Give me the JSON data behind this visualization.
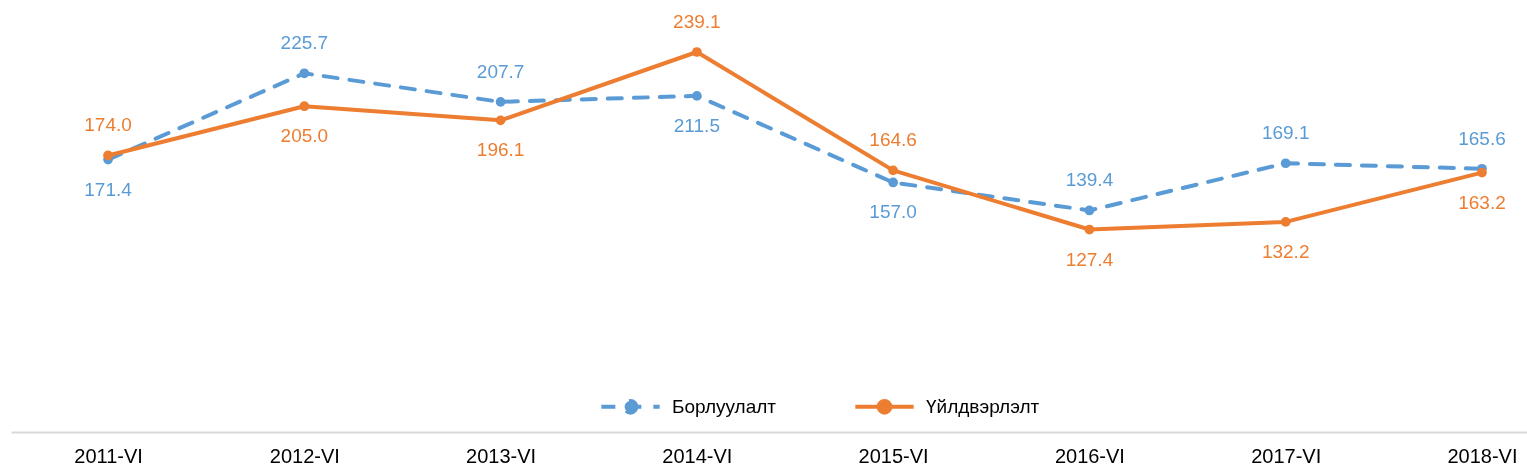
{
  "chart_data": {
    "type": "line",
    "categories": [
      "2011-VI",
      "2012-VI",
      "2013-VI",
      "2014-VI",
      "2015-VI",
      "2016-VI",
      "2017-VI",
      "2018-VI"
    ],
    "series": [
      {
        "name": "Борлуулалт",
        "color": "#5b9bd5",
        "line_style": "dashed",
        "values": [
          171.4,
          225.7,
          207.7,
          211.5,
          157.0,
          139.4,
          169.1,
          165.6
        ],
        "value_labels": [
          "171.4",
          "225.7",
          "207.7",
          "211.5",
          "157.0",
          "139.4",
          "169.1",
          "165.6"
        ]
      },
      {
        "name": "Үйлдвэрлэлт",
        "color": "#ed7d31",
        "line_style": "solid",
        "values": [
          174.0,
          205.0,
          196.1,
          239.1,
          164.6,
          127.4,
          132.2,
          163.2
        ],
        "value_labels": [
          "174.0",
          "205.0",
          "196.1",
          "239.1",
          "164.6",
          "127.4",
          "132.2",
          "163.2"
        ]
      }
    ],
    "marker": "circle",
    "legend": "bottom",
    "tick_labels": "x"
  }
}
